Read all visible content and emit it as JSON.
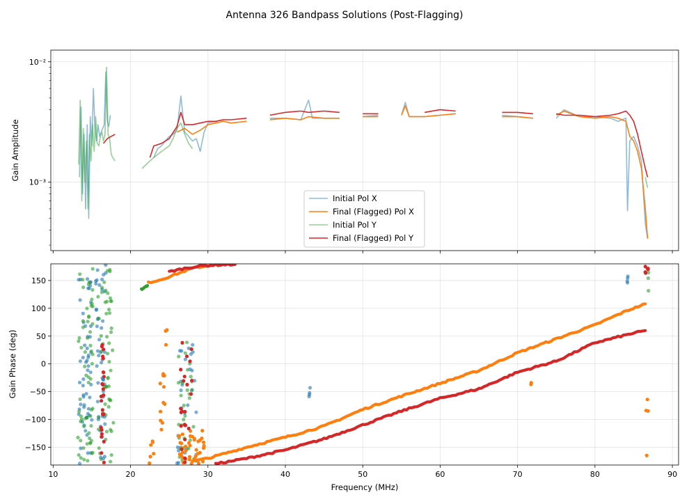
{
  "chart_data": {
    "type": "line",
    "title": "Antenna 326 Bandpass Solutions (Post-Flagging)",
    "xlabel": "Frequency (MHz)",
    "xlim": [
      9.7,
      90.8
    ],
    "xticks": [
      10,
      20,
      30,
      40,
      50,
      60,
      70,
      80,
      90
    ],
    "xtick_labels": [
      "10",
      "20",
      "30",
      "40",
      "50",
      "60",
      "70",
      "80",
      "90"
    ],
    "colors": {
      "initial_x": "#1f77b4",
      "final_x": "#ff7f0e",
      "initial_y": "#2ca02c",
      "final_y": "#d62728"
    },
    "panels": [
      {
        "name": "amplitude",
        "ylabel": "Gain Amplitude",
        "yscale": "log",
        "ylim": [
          0.00027,
          0.0125
        ],
        "yticks": [
          0.001,
          0.01
        ],
        "ytick_labels": [
          "10⁻³",
          "10⁻²"
        ],
        "legend": {
          "location": "lower center",
          "entries": [
            "Initial Pol X",
            "Final (Flagged) Pol X",
            "Initial Pol Y",
            "Final (Flagged) Pol Y"
          ]
        },
        "series": [
          {
            "name": "Initial Pol X",
            "color_key": "initial_x",
            "alpha": 0.5,
            "x": [
              13.4,
              13.6,
              13.8,
              14.0,
              14.2,
              14.4,
              14.6,
              14.8,
              15.0,
              15.2,
              15.4,
              15.6,
              15.8,
              16.0,
              16.2,
              16.4,
              16.6,
              16.8,
              17.0,
              17.2,
              17.4,
              23.0,
              23.5,
              24.0,
              24.5,
              25.0,
              25.5,
              26.0,
              26.5,
              27.0,
              27.5,
              28.0,
              28.5,
              29.0,
              29.5,
              30.0,
              31,
              32,
              35,
              38,
              40,
              42,
              43,
              43.5,
              45,
              47,
              50,
              52,
              55,
              55.5,
              56,
              58,
              60,
              62,
              65,
              68,
              70,
              72,
              75,
              76,
              78,
              80,
              82,
              83,
              84,
              84.2,
              84.5,
              85,
              85.5,
              86,
              86.5,
              86.8
            ],
            "y": [
              0.0011,
              0.0042,
              0.0008,
              0.0025,
              0.0006,
              0.003,
              0.0005,
              0.0035,
              0.002,
              0.006,
              0.0028,
              0.0022,
              0.003,
              0.0024,
              0.0026,
              0.0028,
              0.003,
              0.0082,
              0.0032,
              0.0029,
              0.0036,
              0.0016,
              0.0019,
              0.002,
              0.0022,
              0.0024,
              0.0025,
              0.0027,
              0.0052,
              0.0026,
              0.0024,
              0.0022,
              0.0023,
              0.0018,
              0.0026,
              0.0031,
              0.0032,
              0.0033,
              0.0031,
              0.0034,
              0.0034,
              0.0033,
              0.0048,
              0.0034,
              0.0034,
              0.0034,
              0.0035,
              0.0036,
              0.0036,
              0.0046,
              0.0035,
              0.0035,
              0.0036,
              0.0037,
              0.0035,
              0.0036,
              0.0035,
              0.0034,
              0.0034,
              0.004,
              0.0035,
              0.0035,
              0.0034,
              0.0032,
              0.0034,
              0.00058,
              0.0022,
              0.0024,
              0.002,
              0.0015,
              0.00045,
              0.00034
            ]
          },
          {
            "name": "Final (Flagged) Pol X",
            "color_key": "final_x",
            "alpha": 1,
            "x": [
              26,
              27,
              28,
              29,
              30,
              31,
              32,
              33,
              35,
              38,
              40,
              42,
              43,
              45,
              47,
              50,
              52,
              55,
              55.5,
              56,
              58,
              60,
              62,
              65,
              68,
              70,
              72,
              75,
              76,
              78,
              80,
              82,
              83,
              84,
              84.5,
              85,
              85.5,
              86,
              86.5,
              86.8
            ],
            "y": [
              0.0026,
              0.0028,
              0.0025,
              0.0027,
              0.003,
              0.0031,
              0.0032,
              0.0031,
              0.0032,
              0.0033,
              0.0034,
              0.0033,
              0.0035,
              0.0034,
              0.0034,
              0.0035,
              0.0035,
              0.0036,
              0.0043,
              0.0035,
              0.0035,
              0.0036,
              0.0037,
              0.0036,
              0.0035,
              0.0035,
              0.0034,
              0.0036,
              0.0039,
              0.0035,
              0.0034,
              0.0035,
              0.0034,
              0.0032,
              0.0024,
              0.0022,
              0.0018,
              0.0013,
              0.0006,
              0.00034
            ]
          },
          {
            "name": "Initial Pol Y",
            "color_key": "initial_y",
            "alpha": 0.5,
            "x": [
              13.3,
              13.5,
              13.7,
              13.9,
              14.1,
              14.3,
              14.5,
              14.7,
              14.9,
              15.1,
              15.3,
              15.5,
              15.7,
              15.9,
              16.1,
              16.3,
              16.5,
              16.7,
              16.9,
              17.1,
              17.3,
              17.5,
              17.7,
              18.0,
              21.5,
              22.0,
              22.5,
              23.0,
              24.0,
              25.0,
              25.5,
              26.0,
              26.5,
              27.0,
              27.5,
              28.0,
              86.5,
              86.8
            ],
            "y": [
              0.0014,
              0.0048,
              0.0007,
              0.0028,
              0.001,
              0.0022,
              0.0006,
              0.0025,
              0.0015,
              0.003,
              0.0018,
              0.0035,
              0.0021,
              0.002,
              0.0024,
              0.0026,
              0.0022,
              0.0025,
              0.009,
              0.0025,
              0.0023,
              0.0017,
              0.0016,
              0.0015,
              0.0013,
              0.0014,
              0.0015,
              0.0016,
              0.0018,
              0.002,
              0.0023,
              0.0028,
              0.0031,
              0.0025,
              0.0021,
              0.0019,
              0.0011,
              0.0009
            ]
          },
          {
            "name": "Final (Flagged) Pol Y",
            "color_key": "final_y",
            "alpha": 1,
            "x": [
              16.5,
              17,
              17.5,
              18,
              22.5,
              23,
              24,
              25,
              26,
              26.5,
              27,
              28,
              29,
              30,
              31,
              32,
              33,
              35,
              38,
              40,
              42,
              43,
              45,
              47,
              50,
              52,
              55,
              58,
              60,
              62,
              65,
              68,
              70,
              72,
              75,
              76,
              78,
              80,
              82,
              83,
              84,
              84.5,
              85,
              85.5,
              86,
              86.5,
              86.8
            ],
            "y": [
              0.0021,
              0.0023,
              0.0024,
              0.0025,
              0.0016,
              0.002,
              0.0021,
              0.0023,
              0.0029,
              0.0038,
              0.003,
              0.003,
              0.0031,
              0.0032,
              0.0032,
              0.0033,
              0.0033,
              0.0034,
              0.0036,
              0.0038,
              0.0039,
              0.0038,
              0.0039,
              0.0038,
              0.0037,
              0.0037,
              0.0037,
              0.0038,
              0.004,
              0.0039,
              0.0039,
              0.0038,
              0.0038,
              0.0037,
              0.0037,
              0.0036,
              0.0036,
              0.0035,
              0.0036,
              0.0037,
              0.0039,
              0.0036,
              0.0032,
              0.0025,
              0.0018,
              0.0013,
              0.0011
            ]
          }
        ]
      },
      {
        "name": "phase",
        "ylabel": "Gain Phase (deg)",
        "yscale": "linear",
        "ylim": [
          -182,
          180
        ],
        "yticks": [
          -150,
          -100,
          -50,
          0,
          50,
          100,
          150
        ],
        "ytick_labels": [
          "−150",
          "−100",
          "−50",
          "0",
          "50",
          "100",
          "150"
        ],
        "series": [
          {
            "name": "Final (Flagged) Pol X",
            "color_key": "final_x",
            "style": "dense-line",
            "segments": [
              {
                "x": [
                  22.3,
                  24,
                  26,
                  28,
                  30.5
                ],
                "y": [
                  146,
                  152,
                  162,
                  172,
                  178
                ]
              },
              {
                "x": [
                  28,
                  30,
                  32,
                  35,
                  40,
                  45,
                  50,
                  55,
                  60,
                  65,
                  70,
                  75,
                  80,
                  84,
                  86.5
                ],
                "y": [
                  -175,
                  -170,
                  -162,
                  -150,
                  -132,
                  -112,
                  -82,
                  -58,
                  -35,
                  -12,
                  20,
                  45,
                  70,
                  95,
                  108
                ]
              }
            ]
          },
          {
            "name": "Final (Flagged) Pol Y",
            "color_key": "final_y",
            "style": "dense-line",
            "segments": [
              {
                "x": [
                  25,
                  27,
                  29,
                  31,
                  33.5
                ],
                "y": [
                  166,
                  172,
                  176,
                  178,
                  179
                ]
              },
              {
                "x": [
                  31,
                  35,
                  40,
                  45,
                  50,
                  55,
                  60,
                  65,
                  70,
                  75,
                  80,
                  84,
                  86.5
                ],
                "y": [
                  -180,
                  -170,
                  -155,
                  -135,
                  -110,
                  -85,
                  -62,
                  -45,
                  -15,
                  5,
                  38,
                  52,
                  60
                ]
              }
            ]
          },
          {
            "name": "Initial Pol Y",
            "color_key": "initial_y",
            "style": "dense-line",
            "segments": [
              {
                "x": [
                  21.4,
                  21.8,
                  22.2
                ],
                "y": [
                  134,
                  137,
                  141
                ]
              }
            ]
          }
        ],
        "scatter_clusters": [
          {
            "name": "Initial Pol X",
            "color_key": "initial_x",
            "alpha": 0.6,
            "clusters": [
              {
                "x": [
                  13.3,
                  15.0
                ],
                "y": [
                  -180,
                  180
                ],
                "n": 55
              },
              {
                "x": [
                  15.5,
                  16.8
                ],
                "y": [
                  -180,
                  180
                ],
                "n": 45
              },
              {
                "x": [
                  26.0,
                  28.5
                ],
                "y": [
                  -180,
                  40
                ],
                "n": 30
              },
              {
                "x": [
                  43.0,
                  43.2
                ],
                "y": [
                  -75,
                  -35
                ],
                "n": 4
              },
              {
                "x": [
                  84.0,
                  84.3
                ],
                "y": [
                  125,
                  158
                ],
                "n": 4
              }
            ]
          },
          {
            "name": "Initial Pol Y",
            "color_key": "initial_y",
            "alpha": 0.6,
            "clusters": [
              {
                "x": [
                  13.2,
                  15.2
                ],
                "y": [
                  -180,
                  180
                ],
                "n": 60
              },
              {
                "x": [
                  15.8,
                  17.8
                ],
                "y": [
                  -180,
                  180
                ],
                "n": 55
              },
              {
                "x": [
                  26.0,
                  28.2
                ],
                "y": [
                  -180,
                  50
                ],
                "n": 30
              },
              {
                "x": [
                  86.7,
                  87.0
                ],
                "y": [
                  130,
                  165
                ],
                "n": 3
              }
            ]
          },
          {
            "name": "Final (Flagged) Pol X",
            "color_key": "final_x",
            "alpha": 1,
            "clusters": [
              {
                "x": [
                  22.0,
                  23.0
                ],
                "y": [
                  -180,
                  -120
                ],
                "n": 6
              },
              {
                "x": [
                  23.8,
                  24.8
                ],
                "y": [
                  -180,
                  75
                ],
                "n": 14
              },
              {
                "x": [
                  26.2,
                  29.5
                ],
                "y": [
                  -180,
                  -120
                ],
                "n": 40
              },
              {
                "x": [
                  71.4,
                  71.8
                ],
                "y": [
                  -37,
                  -33
                ],
                "n": 2
              },
              {
                "x": [
                  86.5,
                  86.9
                ],
                "y": [
                  -165,
                  -45
                ],
                "n": 4
              }
            ]
          },
          {
            "name": "Final (Flagged) Pol Y",
            "color_key": "final_y",
            "alpha": 1,
            "clusters": [
              {
                "x": [
                  16.2,
                  16.6
                ],
                "y": [
                  -180,
                  40
                ],
                "n": 25
              },
              {
                "x": [
                  26.4,
                  28.0
                ],
                "y": [
                  -180,
                  45
                ],
                "n": 22
              },
              {
                "x": [
                  86.5,
                  87.0
                ],
                "y": [
                  162,
                  176
                ],
                "n": 6
              }
            ]
          }
        ]
      }
    ]
  }
}
